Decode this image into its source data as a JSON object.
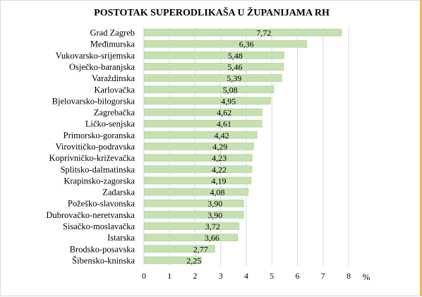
{
  "chart_data": {
    "type": "bar",
    "orientation": "horizontal",
    "title": "POSTOTAK SUPERODLIKAŠA U ŽUPANIJAMA RH",
    "xlabel": "%",
    "ylabel": "",
    "xlim": [
      0,
      8
    ],
    "x_ticks": [
      "0",
      "1",
      "2",
      "3",
      "4",
      "5",
      "6",
      "7",
      "8"
    ],
    "grid": true,
    "bar_color": "#c6e0b4",
    "categories": [
      "Grad Zagreb",
      "Međimurska",
      "Vukovarsko-srijemska",
      "Osječko-baranjska",
      "Varaždinska",
      "Karlovačka",
      "Bjelovarsko-bilogorska",
      "Zagrebačka",
      "Ličko-senjska",
      "Primorsko-goranska",
      "Virovitičko-podravska",
      "Koprivničko-križevačka",
      "Splitsko-dalmatinska",
      "Krapinsko-zagorska",
      "Zadarska",
      "Požeško-slavonska",
      "Dubrovačko-neretvanska",
      "Sisačko-moslavačka",
      "Istarska",
      "Brodsko-posavska",
      "Šibensko-kninska"
    ],
    "values": [
      7.72,
      6.36,
      5.48,
      5.46,
      5.39,
      5.08,
      4.95,
      4.62,
      4.61,
      4.42,
      4.29,
      4.23,
      4.22,
      4.19,
      4.08,
      3.9,
      3.9,
      3.72,
      3.66,
      2.77,
      2.25
    ],
    "value_labels": [
      "7,72",
      "6,36",
      "5,48",
      "5,46",
      "5,39",
      "5,08",
      "4,95",
      "4,62",
      "4,61",
      "4,42",
      "4,29",
      "4,23",
      "4,22",
      "4,19",
      "4,08",
      "3,90",
      "3,90",
      "3,72",
      "3,66",
      "2,77",
      "2,25"
    ]
  }
}
